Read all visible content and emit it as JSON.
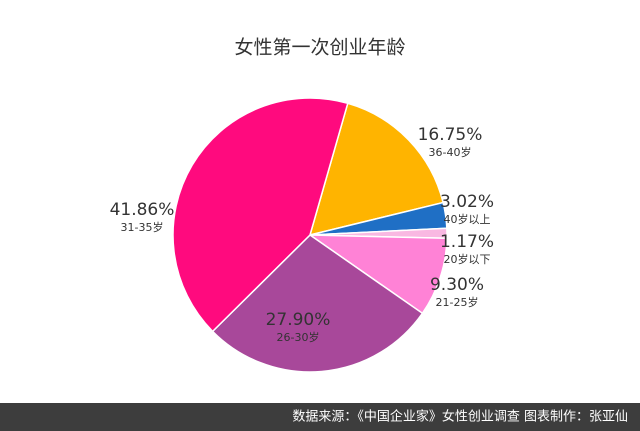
{
  "chart_data": {
    "type": "pie",
    "title": "女性第一次创业年龄",
    "categories": [
      "36-40岁",
      "40岁以上",
      "20岁以下",
      "21-25岁",
      "26-30岁",
      "31-35岁"
    ],
    "values": [
      16.75,
      3.02,
      1.17,
      9.3,
      27.9,
      41.86
    ],
    "value_labels": [
      "16.75%",
      "3.02%",
      "1.17%",
      "9.30%",
      "27.90%",
      "41.86%"
    ],
    "colors": [
      "#FFB400",
      "#1F6FC5",
      "#F9B8E2",
      "#FF82D6",
      "#A8489A",
      "#FF0A7E"
    ],
    "source": "数据来源：《中国企业家》女性创业调查   图表制作：张亚仙"
  }
}
